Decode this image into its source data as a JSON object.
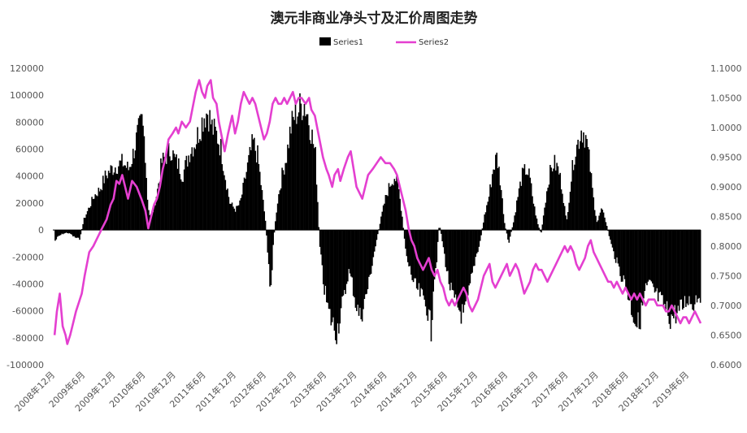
{
  "chart_data": {
    "type": "bar+line",
    "title": "澳元非商业净头寸及汇价周图走势",
    "legend_position": "top",
    "grid": false,
    "series": [
      {
        "name": "Series1",
        "type": "bar",
        "axis": "left",
        "color": "#000000"
      },
      {
        "name": "Series2",
        "type": "line",
        "axis": "right",
        "color": "#e43fd0"
      }
    ],
    "y_left": {
      "min": -100000,
      "max": 120000,
      "step": 20000,
      "ticks": [
        "120000",
        "100000",
        "80000",
        "60000",
        "40000",
        "20000",
        "0",
        "-20000",
        "-40000",
        "-60000",
        "-80000",
        "-100000"
      ]
    },
    "y_right": {
      "min": 0.6,
      "max": 1.1,
      "step": 0.05,
      "ticks": [
        "1.1000",
        "1.0500",
        "1.0000",
        "0.9500",
        "0.9000",
        "0.8500",
        "0.8000",
        "0.7500",
        "0.7000",
        "0.6500",
        "0.6000"
      ]
    },
    "x_ticks": [
      "2008年12月",
      "2009年6月",
      "2009年12月",
      "2010年6月",
      "2010年12月",
      "2011年6月",
      "2011年12月",
      "2012年6月",
      "2012年12月",
      "2013年6月",
      "2013年12月",
      "2014年6月",
      "2014年12月",
      "2015年6月",
      "2015年12月",
      "2016年6月",
      "2016年12月",
      "2017年6月",
      "2017年12月",
      "2018年6月",
      "2018年12月",
      "2019年6月"
    ],
    "x_range": [
      2008.75,
      2019.95
    ],
    "series1_values": [
      [
        2008.78,
        -8000
      ],
      [
        2008.83,
        -5000
      ],
      [
        2008.9,
        -3000
      ],
      [
        2008.98,
        -2000
      ],
      [
        2009.05,
        -3000
      ],
      [
        2009.1,
        -5000
      ],
      [
        2009.2,
        -7000
      ],
      [
        2009.28,
        8000
      ],
      [
        2009.35,
        15000
      ],
      [
        2009.45,
        25000
      ],
      [
        2009.55,
        30000
      ],
      [
        2009.65,
        40000
      ],
      [
        2009.75,
        45000
      ],
      [
        2009.85,
        48000
      ],
      [
        2009.95,
        50000
      ],
      [
        2010.05,
        45000
      ],
      [
        2010.12,
        55000
      ],
      [
        2010.2,
        70000
      ],
      [
        2010.28,
        80000
      ],
      [
        2010.33,
        65000
      ],
      [
        2010.38,
        20000
      ],
      [
        2010.42,
        10000
      ],
      [
        2010.48,
        15000
      ],
      [
        2010.55,
        30000
      ],
      [
        2010.62,
        50000
      ],
      [
        2010.7,
        55000
      ],
      [
        2010.78,
        60000
      ],
      [
        2010.85,
        52000
      ],
      [
        2010.92,
        48000
      ],
      [
        2010.98,
        40000
      ],
      [
        2011.05,
        50000
      ],
      [
        2011.12,
        60000
      ],
      [
        2011.2,
        65000
      ],
      [
        2011.28,
        75000
      ],
      [
        2011.35,
        85000
      ],
      [
        2011.42,
        88000
      ],
      [
        2011.5,
        75000
      ],
      [
        2011.58,
        70000
      ],
      [
        2011.65,
        60000
      ],
      [
        2011.72,
        40000
      ],
      [
        2011.8,
        20000
      ],
      [
        2011.9,
        15000
      ],
      [
        2011.98,
        20000
      ],
      [
        2012.05,
        35000
      ],
      [
        2012.12,
        50000
      ],
      [
        2012.2,
        65000
      ],
      [
        2012.28,
        55000
      ],
      [
        2012.35,
        30000
      ],
      [
        2012.42,
        5000
      ],
      [
        2012.46,
        -20000
      ],
      [
        2012.5,
        -50000
      ],
      [
        2012.55,
        -10000
      ],
      [
        2012.62,
        20000
      ],
      [
        2012.7,
        40000
      ],
      [
        2012.78,
        55000
      ],
      [
        2012.85,
        75000
      ],
      [
        2012.92,
        85000
      ],
      [
        2013.0,
        90000
      ],
      [
        2013.08,
        95000
      ],
      [
        2013.15,
        85000
      ],
      [
        2013.22,
        70000
      ],
      [
        2013.28,
        55000
      ],
      [
        2013.32,
        20000
      ],
      [
        2013.35,
        -10000
      ],
      [
        2013.42,
        -40000
      ],
      [
        2013.5,
        -60000
      ],
      [
        2013.58,
        -70000
      ],
      [
        2013.65,
        -75000
      ],
      [
        2013.72,
        -60000
      ],
      [
        2013.78,
        -50000
      ],
      [
        2013.85,
        -30000
      ],
      [
        2013.92,
        -40000
      ],
      [
        2013.98,
        -55000
      ],
      [
        2014.05,
        -65000
      ],
      [
        2014.12,
        -55000
      ],
      [
        2014.2,
        -40000
      ],
      [
        2014.28,
        -20000
      ],
      [
        2014.35,
        -5000
      ],
      [
        2014.42,
        10000
      ],
      [
        2014.5,
        25000
      ],
      [
        2014.58,
        35000
      ],
      [
        2014.65,
        40000
      ],
      [
        2014.72,
        30000
      ],
      [
        2014.78,
        10000
      ],
      [
        2014.85,
        -20000
      ],
      [
        2014.92,
        -30000
      ],
      [
        2014.98,
        -40000
      ],
      [
        2015.05,
        -45000
      ],
      [
        2015.12,
        -50000
      ],
      [
        2015.2,
        -55000
      ],
      [
        2015.28,
        -75000
      ],
      [
        2015.32,
        -40000
      ],
      [
        2015.38,
        -20000
      ],
      [
        2015.42,
        5000
      ],
      [
        2015.48,
        -10000
      ],
      [
        2015.55,
        -30000
      ],
      [
        2015.62,
        -45000
      ],
      [
        2015.7,
        -55000
      ],
      [
        2015.78,
        -60000
      ],
      [
        2015.85,
        -65000
      ],
      [
        2015.92,
        -50000
      ],
      [
        2015.98,
        -35000
      ],
      [
        2016.05,
        -20000
      ],
      [
        2016.12,
        -10000
      ],
      [
        2016.2,
        10000
      ],
      [
        2016.28,
        25000
      ],
      [
        2016.35,
        45000
      ],
      [
        2016.42,
        55000
      ],
      [
        2016.48,
        35000
      ],
      [
        2016.55,
        5000
      ],
      [
        2016.62,
        -10000
      ],
      [
        2016.7,
        5000
      ],
      [
        2016.78,
        25000
      ],
      [
        2016.85,
        40000
      ],
      [
        2016.92,
        45000
      ],
      [
        2016.98,
        40000
      ],
      [
        2017.05,
        20000
      ],
      [
        2017.12,
        5000
      ],
      [
        2017.18,
        -3000
      ],
      [
        2017.25,
        20000
      ],
      [
        2017.32,
        40000
      ],
      [
        2017.4,
        50000
      ],
      [
        2017.48,
        45000
      ],
      [
        2017.55,
        30000
      ],
      [
        2017.62,
        5000
      ],
      [
        2017.68,
        30000
      ],
      [
        2017.75,
        55000
      ],
      [
        2017.82,
        65000
      ],
      [
        2017.88,
        75000
      ],
      [
        2017.95,
        70000
      ],
      [
        2018.02,
        50000
      ],
      [
        2018.08,
        25000
      ],
      [
        2018.15,
        5000
      ],
      [
        2018.22,
        15000
      ],
      [
        2018.28,
        10000
      ],
      [
        2018.35,
        -3000
      ],
      [
        2018.42,
        -15000
      ],
      [
        2018.5,
        -25000
      ],
      [
        2018.58,
        -35000
      ],
      [
        2018.65,
        -40000
      ],
      [
        2018.72,
        -55000
      ],
      [
        2018.8,
        -65000
      ],
      [
        2018.85,
        -72000
      ],
      [
        2018.92,
        -60000
      ],
      [
        2018.98,
        -45000
      ],
      [
        2019.05,
        -40000
      ],
      [
        2019.12,
        -45000
      ],
      [
        2019.2,
        -50000
      ],
      [
        2019.28,
        -55000
      ],
      [
        2019.35,
        -60000
      ],
      [
        2019.42,
        -65000
      ],
      [
        2019.5,
        -62000
      ],
      [
        2019.58,
        -60000
      ],
      [
        2019.65,
        -55000
      ],
      [
        2019.72,
        -50000
      ],
      [
        2019.8,
        -55000
      ],
      [
        2019.88,
        -48000
      ],
      [
        2019.95,
        -47000
      ]
    ],
    "series2_values": [
      [
        2008.78,
        0.65
      ],
      [
        2008.82,
        0.69
      ],
      [
        2008.87,
        0.72
      ],
      [
        2008.92,
        0.665
      ],
      [
        2008.97,
        0.65
      ],
      [
        2009.0,
        0.635
      ],
      [
        2009.05,
        0.65
      ],
      [
        2009.1,
        0.67
      ],
      [
        2009.15,
        0.69
      ],
      [
        2009.2,
        0.705
      ],
      [
        2009.25,
        0.72
      ],
      [
        2009.3,
        0.75
      ],
      [
        2009.38,
        0.79
      ],
      [
        2009.45,
        0.8
      ],
      [
        2009.5,
        0.81
      ],
      [
        2009.55,
        0.82
      ],
      [
        2009.6,
        0.83
      ],
      [
        2009.68,
        0.845
      ],
      [
        2009.75,
        0.87
      ],
      [
        2009.8,
        0.88
      ],
      [
        2009.85,
        0.91
      ],
      [
        2009.9,
        0.905
      ],
      [
        2009.95,
        0.92
      ],
      [
        2010.0,
        0.9
      ],
      [
        2010.05,
        0.88
      ],
      [
        2010.12,
        0.91
      ],
      [
        2010.2,
        0.9
      ],
      [
        2010.28,
        0.88
      ],
      [
        2010.35,
        0.86
      ],
      [
        2010.4,
        0.83
      ],
      [
        2010.45,
        0.85
      ],
      [
        2010.5,
        0.87
      ],
      [
        2010.55,
        0.88
      ],
      [
        2010.6,
        0.9
      ],
      [
        2010.65,
        0.93
      ],
      [
        2010.7,
        0.95
      ],
      [
        2010.75,
        0.98
      ],
      [
        2010.82,
        0.99
      ],
      [
        2010.88,
        1.0
      ],
      [
        2010.92,
        0.99
      ],
      [
        2010.98,
        1.01
      ],
      [
        2011.05,
        1.0
      ],
      [
        2011.12,
        1.01
      ],
      [
        2011.18,
        1.04
      ],
      [
        2011.22,
        1.06
      ],
      [
        2011.28,
        1.08
      ],
      [
        2011.33,
        1.06
      ],
      [
        2011.38,
        1.05
      ],
      [
        2011.42,
        1.07
      ],
      [
        2011.48,
        1.08
      ],
      [
        2011.52,
        1.05
      ],
      [
        2011.58,
        1.04
      ],
      [
        2011.62,
        1.01
      ],
      [
        2011.68,
        0.98
      ],
      [
        2011.72,
        0.96
      ],
      [
        2011.78,
        0.99
      ],
      [
        2011.85,
        1.02
      ],
      [
        2011.9,
        0.99
      ],
      [
        2011.95,
        1.01
      ],
      [
        2012.0,
        1.04
      ],
      [
        2012.05,
        1.06
      ],
      [
        2012.1,
        1.05
      ],
      [
        2012.15,
        1.04
      ],
      [
        2012.2,
        1.05
      ],
      [
        2012.25,
        1.04
      ],
      [
        2012.3,
        1.02
      ],
      [
        2012.35,
        1.0
      ],
      [
        2012.4,
        0.98
      ],
      [
        2012.45,
        0.99
      ],
      [
        2012.5,
        1.01
      ],
      [
        2012.55,
        1.04
      ],
      [
        2012.6,
        1.05
      ],
      [
        2012.65,
        1.04
      ],
      [
        2012.7,
        1.04
      ],
      [
        2012.75,
        1.05
      ],
      [
        2012.8,
        1.04
      ],
      [
        2012.85,
        1.05
      ],
      [
        2012.9,
        1.06
      ],
      [
        2012.95,
        1.04
      ],
      [
        2013.0,
        1.05
      ],
      [
        2013.05,
        1.05
      ],
      [
        2013.12,
        1.04
      ],
      [
        2013.18,
        1.05
      ],
      [
        2013.22,
        1.03
      ],
      [
        2013.28,
        1.02
      ],
      [
        2013.32,
        1.0
      ],
      [
        2013.38,
        0.97
      ],
      [
        2013.42,
        0.95
      ],
      [
        2013.48,
        0.93
      ],
      [
        2013.52,
        0.92
      ],
      [
        2013.58,
        0.9
      ],
      [
        2013.62,
        0.92
      ],
      [
        2013.68,
        0.93
      ],
      [
        2013.72,
        0.91
      ],
      [
        2013.78,
        0.93
      ],
      [
        2013.85,
        0.95
      ],
      [
        2013.9,
        0.96
      ],
      [
        2013.95,
        0.93
      ],
      [
        2014.0,
        0.9
      ],
      [
        2014.05,
        0.89
      ],
      [
        2014.1,
        0.88
      ],
      [
        2014.15,
        0.9
      ],
      [
        2014.2,
        0.92
      ],
      [
        2014.28,
        0.93
      ],
      [
        2014.35,
        0.94
      ],
      [
        2014.42,
        0.95
      ],
      [
        2014.5,
        0.94
      ],
      [
        2014.58,
        0.94
      ],
      [
        2014.65,
        0.93
      ],
      [
        2014.7,
        0.92
      ],
      [
        2014.75,
        0.9
      ],
      [
        2014.8,
        0.88
      ],
      [
        2014.85,
        0.86
      ],
      [
        2014.9,
        0.83
      ],
      [
        2014.95,
        0.81
      ],
      [
        2015.0,
        0.8
      ],
      [
        2015.05,
        0.78
      ],
      [
        2015.1,
        0.77
      ],
      [
        2015.15,
        0.76
      ],
      [
        2015.2,
        0.77
      ],
      [
        2015.25,
        0.78
      ],
      [
        2015.3,
        0.76
      ],
      [
        2015.35,
        0.75
      ],
      [
        2015.4,
        0.76
      ],
      [
        2015.45,
        0.74
      ],
      [
        2015.5,
        0.73
      ],
      [
        2015.55,
        0.71
      ],
      [
        2015.6,
        0.7
      ],
      [
        2015.65,
        0.71
      ],
      [
        2015.7,
        0.7
      ],
      [
        2015.75,
        0.71
      ],
      [
        2015.8,
        0.72
      ],
      [
        2015.85,
        0.73
      ],
      [
        2015.9,
        0.72
      ],
      [
        2015.95,
        0.7
      ],
      [
        2016.0,
        0.69
      ],
      [
        2016.05,
        0.7
      ],
      [
        2016.1,
        0.71
      ],
      [
        2016.15,
        0.73
      ],
      [
        2016.2,
        0.75
      ],
      [
        2016.25,
        0.76
      ],
      [
        2016.3,
        0.77
      ],
      [
        2016.35,
        0.74
      ],
      [
        2016.4,
        0.73
      ],
      [
        2016.45,
        0.74
      ],
      [
        2016.5,
        0.75
      ],
      [
        2016.55,
        0.76
      ],
      [
        2016.6,
        0.77
      ],
      [
        2016.65,
        0.75
      ],
      [
        2016.7,
        0.76
      ],
      [
        2016.75,
        0.77
      ],
      [
        2016.8,
        0.76
      ],
      [
        2016.85,
        0.74
      ],
      [
        2016.9,
        0.72
      ],
      [
        2016.95,
        0.73
      ],
      [
        2017.0,
        0.74
      ],
      [
        2017.05,
        0.76
      ],
      [
        2017.1,
        0.77
      ],
      [
        2017.15,
        0.76
      ],
      [
        2017.2,
        0.76
      ],
      [
        2017.25,
        0.75
      ],
      [
        2017.3,
        0.74
      ],
      [
        2017.35,
        0.75
      ],
      [
        2017.4,
        0.76
      ],
      [
        2017.45,
        0.77
      ],
      [
        2017.5,
        0.78
      ],
      [
        2017.55,
        0.79
      ],
      [
        2017.6,
        0.8
      ],
      [
        2017.65,
        0.79
      ],
      [
        2017.7,
        0.8
      ],
      [
        2017.75,
        0.79
      ],
      [
        2017.8,
        0.77
      ],
      [
        2017.85,
        0.76
      ],
      [
        2017.9,
        0.77
      ],
      [
        2017.95,
        0.78
      ],
      [
        2018.0,
        0.8
      ],
      [
        2018.05,
        0.81
      ],
      [
        2018.1,
        0.79
      ],
      [
        2018.15,
        0.78
      ],
      [
        2018.2,
        0.77
      ],
      [
        2018.25,
        0.76
      ],
      [
        2018.3,
        0.75
      ],
      [
        2018.35,
        0.74
      ],
      [
        2018.4,
        0.74
      ],
      [
        2018.45,
        0.73
      ],
      [
        2018.5,
        0.74
      ],
      [
        2018.55,
        0.73
      ],
      [
        2018.6,
        0.72
      ],
      [
        2018.65,
        0.73
      ],
      [
        2018.7,
        0.72
      ],
      [
        2018.75,
        0.71
      ],
      [
        2018.8,
        0.72
      ],
      [
        2018.85,
        0.71
      ],
      [
        2018.9,
        0.72
      ],
      [
        2018.95,
        0.71
      ],
      [
        2019.0,
        0.7
      ],
      [
        2019.05,
        0.71
      ],
      [
        2019.1,
        0.71
      ],
      [
        2019.15,
        0.71
      ],
      [
        2019.2,
        0.7
      ],
      [
        2019.25,
        0.7
      ],
      [
        2019.3,
        0.7
      ],
      [
        2019.35,
        0.69
      ],
      [
        2019.4,
        0.69
      ],
      [
        2019.45,
        0.7
      ],
      [
        2019.5,
        0.69
      ],
      [
        2019.55,
        0.68
      ],
      [
        2019.6,
        0.67
      ],
      [
        2019.65,
        0.68
      ],
      [
        2019.7,
        0.68
      ],
      [
        2019.75,
        0.67
      ],
      [
        2019.8,
        0.68
      ],
      [
        2019.85,
        0.69
      ],
      [
        2019.9,
        0.68
      ],
      [
        2019.95,
        0.67
      ]
    ]
  }
}
